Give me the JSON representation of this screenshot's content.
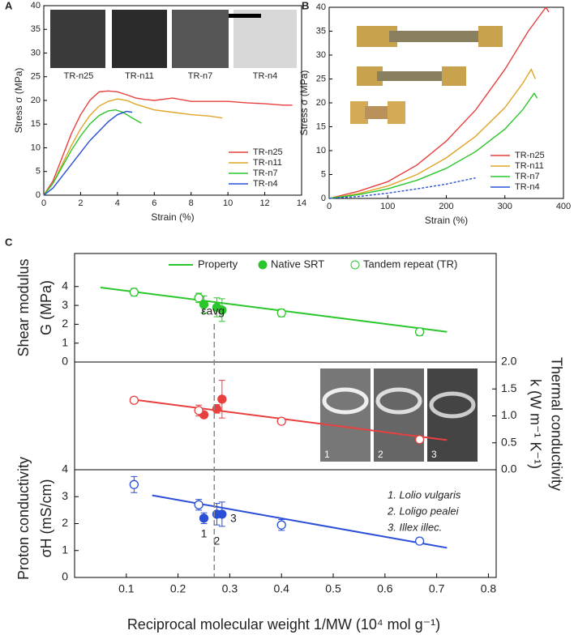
{
  "panel_labels": [
    "A",
    "B",
    "C"
  ],
  "chart_data": [
    {
      "type": "line",
      "xlabel": "Strain (%)",
      "ylabel": "Stress σ (MPa)",
      "xlim": [
        0,
        14
      ],
      "xticks": [
        0,
        2,
        4,
        6,
        8,
        10,
        12,
        14
      ],
      "ylim": [
        0,
        40
      ],
      "yticks": [
        0,
        5,
        10,
        15,
        20,
        25,
        30,
        35,
        40
      ],
      "photo_labels": [
        "TR-n25",
        "TR-n11",
        "TR-n7",
        "TR-n4"
      ],
      "legend": "lower right",
      "series": [
        {
          "name": "TR-n25",
          "color": "#e8403f",
          "x": [
            0,
            0.5,
            1,
            1.5,
            2,
            2.5,
            3,
            3.5,
            4,
            4.5,
            5,
            5.5,
            6,
            7,
            8,
            9,
            10,
            11,
            12,
            13,
            13.5
          ],
          "values": [
            0,
            3,
            8,
            13,
            17,
            20,
            21.8,
            22,
            21.8,
            21.2,
            20.5,
            20.2,
            20,
            20.5,
            19.8,
            19.8,
            19.8,
            19.5,
            19.3,
            19,
            19
          ]
        },
        {
          "name": "TR-n11",
          "color": "#e0a526",
          "x": [
            0,
            0.5,
            1,
            1.5,
            2,
            2.5,
            3,
            3.5,
            4,
            4.5,
            5,
            6,
            7,
            8,
            9,
            9.7
          ],
          "values": [
            0,
            2.5,
            6.5,
            10.5,
            14,
            16.8,
            18.8,
            19.8,
            20.3,
            20,
            19.2,
            18,
            17.5,
            17,
            16.7,
            16.3
          ]
        },
        {
          "name": "TR-n7",
          "color": "#2bc62b",
          "x": [
            0,
            0.5,
            1,
            1.5,
            2,
            2.5,
            3,
            3.5,
            3.9,
            4.3,
            4.8,
            5.3
          ],
          "values": [
            0,
            2.5,
            6,
            9.5,
            12.5,
            15,
            16.8,
            17.8,
            18,
            17.5,
            16.3,
            15.2
          ]
        },
        {
          "name": "TR-n4",
          "color": "#2a4fd6",
          "x": [
            0,
            0.5,
            1,
            1.5,
            2,
            2.5,
            3,
            3.5,
            4,
            4.5,
            4.8
          ],
          "values": [
            0,
            1.5,
            4,
            6.5,
            9,
            11.5,
            13.5,
            15.5,
            17,
            17.7,
            17.5
          ]
        }
      ]
    },
    {
      "type": "line",
      "xlabel": "Strain (%)",
      "ylabel": "Stress σ (MPa)",
      "xlim": [
        0,
        400
      ],
      "xticks": [
        0,
        100,
        200,
        300,
        400
      ],
      "ylim": [
        0,
        40
      ],
      "yticks": [
        0,
        5,
        10,
        15,
        20,
        25,
        30,
        35,
        40
      ],
      "legend": "lower right",
      "series": [
        {
          "name": "TR-n25",
          "color": "#e8403f",
          "x": [
            0,
            50,
            100,
            150,
            200,
            250,
            300,
            340,
            370,
            375
          ],
          "values": [
            0,
            1.5,
            3.5,
            7,
            12,
            18.5,
            27,
            35,
            40,
            39
          ]
        },
        {
          "name": "TR-n11",
          "color": "#e0a526",
          "x": [
            0,
            50,
            100,
            150,
            200,
            250,
            300,
            330,
            345,
            352
          ],
          "values": [
            0,
            1,
            2.6,
            5,
            8.5,
            13,
            19,
            24,
            27,
            25
          ]
        },
        {
          "name": "TR-n7",
          "color": "#2bc62b",
          "x": [
            0,
            50,
            100,
            150,
            200,
            250,
            300,
            330,
            350,
            355
          ],
          "values": [
            0,
            0.8,
            2,
            3.8,
            6.3,
            9.8,
            14.5,
            18.5,
            22,
            21
          ]
        },
        {
          "name": "TR-n4",
          "color": "#2a4fd6",
          "dash": true,
          "x": [
            0,
            50,
            100,
            150,
            200,
            250
          ],
          "values": [
            0,
            0.4,
            1.1,
            2,
            3,
            4.3
          ]
        }
      ]
    },
    {
      "type": "scatter",
      "xlabel": "Reciprocal molecular weight 1/MW (10⁴ mol g⁻¹)",
      "xlim": [
        0,
        0.815
      ],
      "xticks": [
        0.1,
        0.2,
        0.3,
        0.4,
        0.5,
        0.6,
        0.7,
        0.8
      ],
      "vline": 0.27,
      "vline_label": "εavg",
      "panels": [
        {
          "ylabel": [
            "Shear modulus",
            "G (MPa)"
          ],
          "yaxis": "left",
          "ylim": [
            0,
            5.75
          ],
          "yticks": [
            0,
            1,
            2,
            3,
            4
          ],
          "series": [
            {
              "name": "Property",
              "marker": "none",
              "color": "#2bc62b",
              "x": [
                0.05,
                0.72
              ],
              "values": [
                3.95,
                1.6
              ]
            },
            {
              "name": "Native SRT",
              "marker": "filled",
              "color": "#2bc62b",
              "x": [
                0.25,
                0.275,
                0.285
              ],
              "values": [
                3.05,
                2.9,
                2.75
              ],
              "errors": [
                0.45,
                0.5,
                0.6
              ]
            },
            {
              "name": "Tandem repeat (TR)",
              "marker": "open",
              "color": "#2bc62b",
              "x": [
                0.115,
                0.24,
                0.4,
                0.667
              ],
              "values": [
                3.7,
                3.4,
                2.6,
                1.6
              ],
              "errors": [
                0.2,
                0.25,
                0.2,
                0.2
              ]
            }
          ]
        },
        {
          "ylabel": [
            "Thermal conductivity",
            "k (W m⁻¹ K⁻¹)"
          ],
          "yaxis": "right",
          "ylim": [
            0,
            2
          ],
          "yticks": [
            {
              "value": 0,
              "label": "0.0"
            },
            {
              "value": 0.5,
              "label": "0.5"
            },
            {
              "value": 1,
              "label": "1.0"
            },
            {
              "value": 1.5,
              "label": "1.5"
            },
            {
              "value": 2,
              "label": "2.0"
            }
          ],
          "photo_labels": [
            "1",
            "2",
            "3"
          ],
          "series": [
            {
              "marker": "none",
              "color": "#e8403f",
              "x": [
                0.115,
                0.72
              ],
              "values": [
                1.3,
                0.55
              ]
            },
            {
              "marker": "filled",
              "color": "#e8403f",
              "x": [
                0.25,
                0.275,
                0.285
              ],
              "values": [
                1.02,
                1.13,
                1.31
              ],
              "errors": [
                0.06,
                0.08,
                0.35
              ]
            },
            {
              "marker": "open",
              "color": "#e8403f",
              "x": [
                0.115,
                0.24,
                0.4,
                0.667
              ],
              "values": [
                1.29,
                1.1,
                0.9,
                0.56
              ],
              "errors": [
                0.05,
                0.1,
                0.03,
                0.03
              ]
            }
          ]
        },
        {
          "ylabel": [
            "Proton conductivity",
            "σH (mS/cm)"
          ],
          "yaxis": "left",
          "ylim": [
            0,
            4
          ],
          "yticks": [
            0,
            1,
            2,
            3,
            4
          ],
          "point_labels": [
            "1",
            "2",
            "3"
          ],
          "annotations": [
            "1. Lolio vulgaris",
            "2. Loligo pealei",
            "3. Illex illec."
          ],
          "series": [
            {
              "marker": "none",
              "color": "#2a4fd6",
              "x": [
                0.15,
                0.72
              ],
              "values": [
                3.05,
                1.1
              ]
            },
            {
              "marker": "filled",
              "color": "#2a4fd6",
              "x": [
                0.25,
                0.275,
                0.285
              ],
              "values": [
                2.2,
                2.35,
                2.35
              ],
              "errors": [
                0.2,
                0.4,
                0.45
              ]
            },
            {
              "marker": "open",
              "color": "#2a4fd6",
              "x": [
                0.115,
                0.24,
                0.4,
                0.667
              ],
              "values": [
                3.45,
                2.7,
                1.95,
                1.35
              ],
              "errors": [
                0.3,
                0.2,
                0.2,
                0.08
              ]
            }
          ]
        }
      ]
    }
  ]
}
